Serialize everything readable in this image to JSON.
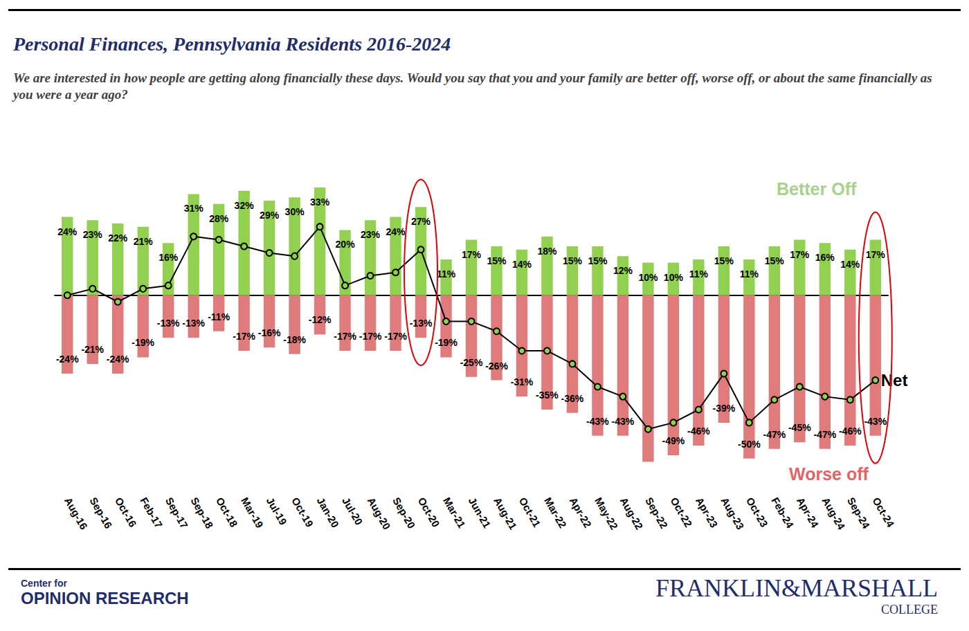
{
  "chart_data": {
    "type": "bar",
    "title": "Personal Finances, Pennsylvania Residents 2016-2024",
    "subtitle": "We are interested in how people are getting along financially these days. Would you say that you and your family are better off, worse off, or about the same financially as you were a year ago?",
    "categories": [
      "Aug-16",
      "Sep-16",
      "Oct-16",
      "Feb-17",
      "Sep-17",
      "Sep-18",
      "Oct-18",
      "Mar-19",
      "Jul-19",
      "Oct-19",
      "Jan-20",
      "Jul-20",
      "Aug-20",
      "Sep-20",
      "Oct-20",
      "Mar-21",
      "Jun-21",
      "Aug-21",
      "Oct-21",
      "Mar-22",
      "Apr-22",
      "May-22",
      "Aug-22",
      "Sep-22",
      "Oct-22",
      "Apr-23",
      "Aug-23",
      "Oct-23",
      "Feb-24",
      "Apr-24",
      "Aug-24",
      "Sep-24",
      "Oct-24"
    ],
    "series": [
      {
        "name": "Better Off",
        "type": "bar",
        "color": "#92d050",
        "values": [
          24,
          23,
          22,
          21,
          16,
          31,
          28,
          32,
          29,
          30,
          33,
          20,
          23,
          24,
          27,
          11,
          17,
          15,
          14,
          18,
          15,
          15,
          12,
          10,
          10,
          11,
          15,
          11,
          15,
          17,
          16,
          14,
          17
        ],
        "value_labels": [
          "24%",
          "23%",
          "22%",
          "21%",
          "16%",
          "31%",
          "28%",
          "32%",
          "29%",
          "30%",
          "33%",
          "20%",
          "23%",
          "24%",
          "27%",
          "11%",
          "17%",
          "15%",
          "14%",
          "18%",
          "15%",
          "15%",
          "12%",
          "10%",
          "10%",
          "11%",
          "15%",
          "11%",
          "15%",
          "17%",
          "16%",
          "14%",
          "17%"
        ]
      },
      {
        "name": "Worse off",
        "type": "bar",
        "color": "#e07b7b",
        "values": [
          -24,
          -21,
          -24,
          -19,
          -13,
          -13,
          -11,
          -17,
          -16,
          -18,
          -12,
          -17,
          -17,
          -17,
          -13,
          -19,
          -25,
          -26,
          -31,
          -35,
          -36,
          -43,
          -43,
          -51,
          -49,
          -46,
          -39,
          -50,
          -47,
          -45,
          -47,
          -46,
          -43
        ],
        "value_labels": [
          "-24%",
          "-21%",
          "-24%",
          "-19%",
          "-13%",
          "-13%",
          "-11%",
          "-17%",
          "-16%",
          "-18%",
          "-12%",
          "-17%",
          "-17%",
          "-17%",
          "-13%",
          "-19%",
          "-25%",
          "-26%",
          "-31%",
          "-35%",
          "-36%",
          "-43%",
          "-43%",
          null,
          "-49%",
          "-46%",
          "-39%",
          "-50%",
          "-47%",
          "-45%",
          "-47%",
          "-46%",
          "-43%"
        ]
      },
      {
        "name": "Net",
        "type": "line",
        "color": "#000000",
        "marker": "circle",
        "values": [
          0,
          2,
          -2,
          2,
          3,
          18,
          17,
          15,
          13,
          12,
          21,
          3,
          6,
          7,
          14,
          -8,
          -8,
          -11,
          -17,
          -17,
          -21,
          -28,
          -31,
          -41,
          -39,
          -35,
          -24,
          -39,
          -32,
          -28,
          -31,
          -32,
          -26
        ]
      }
    ],
    "ylim": [
      -60,
      40
    ],
    "yticks": [
      -60,
      -40,
      -20,
      0,
      20,
      40
    ],
    "tick_labels": "x",
    "grid": false,
    "data_labels": true,
    "highlights": [
      "Oct-20",
      "Oct-24"
    ]
  },
  "footer": {
    "left": [
      "Center for",
      "OPINION RESEARCH"
    ],
    "right": [
      "FRANKLIN&MARSHALL",
      "COLLEGE"
    ]
  }
}
